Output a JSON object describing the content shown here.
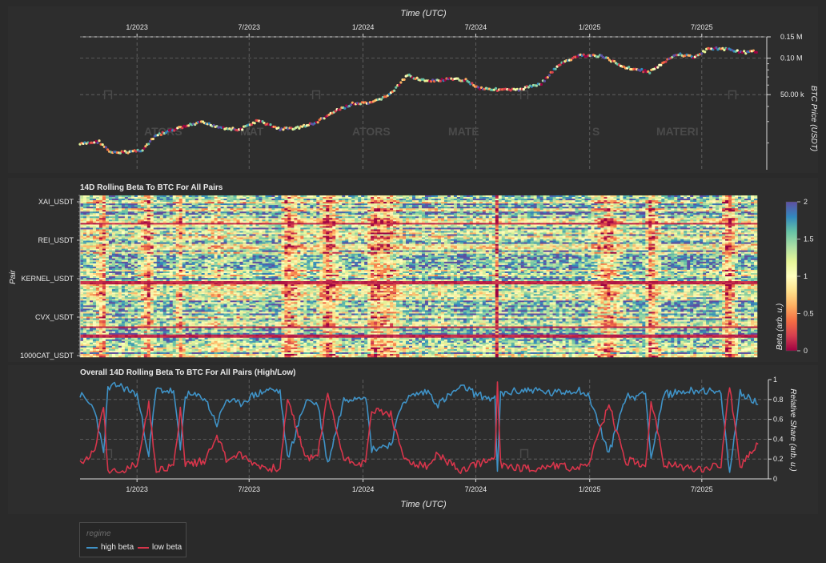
{
  "toolbar": {
    "icons": [
      "pan-icon",
      "box-zoom-icon",
      "wheel-zoom-icon",
      "save-icon",
      "reset-icon",
      "hover-icon",
      "crosshair-icon",
      "bokeh-logo-icon"
    ]
  },
  "chart_data": [
    {
      "type": "line",
      "xlabel": "Time (UTC)",
      "ylabel": "BTC Price (USDT)",
      "yscale": "log",
      "x_ticks": [
        "1/2023",
        "7/2023",
        "1/2024",
        "7/2024",
        "1/2025",
        "7/2025"
      ],
      "y_ticks": [
        "0.15 M",
        "0.10 M",
        "50.00 k"
      ],
      "ylim": [
        12000,
        150000
      ],
      "xlim": [
        "2022-10-01",
        "2025-10-01"
      ],
      "watermark": "MATERIALS",
      "grid": true,
      "series": [
        {
          "x": [
            "2022-10-01",
            "2022-11-01",
            "2022-11-20",
            "2022-12-15",
            "2023-01-10",
            "2023-02-01",
            "2023-03-10",
            "2023-04-15",
            "2023-05-15",
            "2023-06-15",
            "2023-07-15",
            "2023-08-20",
            "2023-09-15",
            "2023-10-15",
            "2023-11-15",
            "2023-12-15",
            "2024-01-15",
            "2024-02-15",
            "2024-03-13",
            "2024-04-15",
            "2024-05-20",
            "2024-06-15",
            "2024-07-05",
            "2024-08-05",
            "2024-09-06",
            "2024-10-15",
            "2024-11-12",
            "2024-12-17",
            "2025-01-20",
            "2025-02-28",
            "2025-04-08",
            "2025-05-22",
            "2025-06-20",
            "2025-07-14",
            "2025-08-14",
            "2025-09-10",
            "2025-09-30"
          ],
          "values": [
            19500,
            20500,
            16500,
            16800,
            17500,
            23000,
            26500,
            29500,
            27000,
            25500,
            30500,
            26000,
            26500,
            29000,
            36000,
            42000,
            42500,
            51000,
            72000,
            64000,
            67000,
            66000,
            57000,
            55000,
            54500,
            62000,
            88000,
            106000,
            104000,
            84000,
            77000,
            108000,
            102000,
            121000,
            118000,
            111000,
            114000
          ]
        }
      ]
    },
    {
      "type": "heatmap",
      "title": "14D Rolling Beta To BTC For All Pairs",
      "xlabel": "",
      "ylabel": "Pair",
      "y_ticks": [
        "XAI_USDT",
        "REI_USDT",
        "KERNEL_USDT",
        "CVX_USDT",
        "1000CAT_USDT"
      ],
      "colorbar_label": "Beta (arb. u.)",
      "colorbar_ticks": [
        "2",
        "1.5",
        "1",
        "0.5",
        "0"
      ],
      "zlim": [
        0,
        2
      ],
      "colormap": [
        "#9e0142",
        "#d53e4f",
        "#f46d43",
        "#fdae61",
        "#fee08b",
        "#ffffbf",
        "#e6f598",
        "#abdda4",
        "#66c2a5",
        "#3288bd",
        "#5e4fa2"
      ]
    },
    {
      "type": "line",
      "title": "Overall 14D Rolling Beta To BTC For All Pairs (High/Low)",
      "xlabel": "Time (UTC)",
      "ylabel": "Relative Share (arb. u.)",
      "x_ticks": [
        "1/2023",
        "7/2023",
        "1/2024",
        "7/2024",
        "1/2025",
        "7/2025"
      ],
      "y_ticks": [
        "1",
        "0.8",
        "0.6",
        "0.4",
        "0.2",
        "0"
      ],
      "ylim": [
        0,
        1
      ],
      "legend_title": "regime",
      "legend_position": "bottom-left",
      "series": [
        {
          "name": "high beta",
          "color": "#3f92c6",
          "x": [
            "2022-10-01",
            "2022-10-25",
            "2022-11-08",
            "2022-11-15",
            "2022-12-01",
            "2023-01-01",
            "2023-01-20",
            "2023-02-01",
            "2023-03-01",
            "2023-03-12",
            "2023-03-20",
            "2023-04-20",
            "2023-05-10",
            "2023-05-25",
            "2023-06-15",
            "2023-07-01",
            "2023-08-01",
            "2023-08-20",
            "2023-09-01",
            "2023-10-01",
            "2023-10-20",
            "2023-11-05",
            "2023-12-01",
            "2024-01-05",
            "2024-01-15",
            "2024-02-15",
            "2024-03-05",
            "2024-03-25",
            "2024-04-15",
            "2024-05-01",
            "2024-06-01",
            "2024-06-15",
            "2024-07-01",
            "2024-08-01",
            "2024-08-05",
            "2024-08-10",
            "2024-09-01",
            "2024-10-01",
            "2024-11-01",
            "2024-12-15",
            "2025-01-01",
            "2025-02-01",
            "2025-03-01",
            "2025-03-10",
            "2025-04-01",
            "2025-04-10",
            "2025-05-01",
            "2025-06-01",
            "2025-07-01",
            "2025-08-01",
            "2025-08-15",
            "2025-09-01",
            "2025-09-30"
          ],
          "values": [
            0.85,
            0.7,
            0.25,
            0.9,
            0.95,
            0.85,
            0.25,
            0.9,
            0.88,
            0.3,
            0.85,
            0.82,
            0.55,
            0.8,
            0.75,
            0.82,
            0.9,
            0.88,
            0.2,
            0.8,
            0.75,
            0.15,
            0.8,
            0.85,
            0.3,
            0.35,
            0.78,
            0.85,
            0.88,
            0.75,
            0.9,
            0.92,
            0.85,
            0.8,
            0.05,
            0.85,
            0.88,
            0.9,
            0.86,
            0.9,
            0.82,
            0.25,
            0.85,
            0.8,
            0.9,
            0.2,
            0.85,
            0.88,
            0.9,
            0.85,
            0.05,
            0.88,
            0.75
          ]
        },
        {
          "name": "low beta",
          "color": "#d7354b",
          "x": [
            "2022-10-01",
            "2022-10-25",
            "2022-11-08",
            "2022-11-15",
            "2022-12-01",
            "2023-01-01",
            "2023-01-20",
            "2023-02-01",
            "2023-03-01",
            "2023-03-12",
            "2023-03-20",
            "2023-04-20",
            "2023-05-10",
            "2023-05-25",
            "2023-06-15",
            "2023-07-01",
            "2023-08-01",
            "2023-08-20",
            "2023-09-01",
            "2023-10-01",
            "2023-10-20",
            "2023-11-05",
            "2023-12-01",
            "2024-01-05",
            "2024-01-15",
            "2024-02-15",
            "2024-03-05",
            "2024-03-25",
            "2024-04-15",
            "2024-05-01",
            "2024-06-01",
            "2024-06-15",
            "2024-07-01",
            "2024-08-01",
            "2024-08-05",
            "2024-08-10",
            "2024-09-01",
            "2024-10-01",
            "2024-11-01",
            "2024-12-15",
            "2025-01-01",
            "2025-02-01",
            "2025-03-01",
            "2025-03-10",
            "2025-04-01",
            "2025-04-10",
            "2025-05-01",
            "2025-06-01",
            "2025-07-01",
            "2025-08-01",
            "2025-08-15",
            "2025-09-01",
            "2025-09-30"
          ],
          "values": [
            0.15,
            0.3,
            0.75,
            0.1,
            0.05,
            0.15,
            0.75,
            0.1,
            0.12,
            0.7,
            0.15,
            0.18,
            0.45,
            0.2,
            0.25,
            0.18,
            0.1,
            0.12,
            0.8,
            0.2,
            0.25,
            0.85,
            0.2,
            0.15,
            0.7,
            0.65,
            0.22,
            0.15,
            0.12,
            0.25,
            0.1,
            0.08,
            0.15,
            0.2,
            0.95,
            0.15,
            0.12,
            0.1,
            0.14,
            0.1,
            0.18,
            0.75,
            0.15,
            0.2,
            0.1,
            0.8,
            0.15,
            0.12,
            0.1,
            0.15,
            0.95,
            0.12,
            0.35
          ]
        }
      ]
    }
  ]
}
